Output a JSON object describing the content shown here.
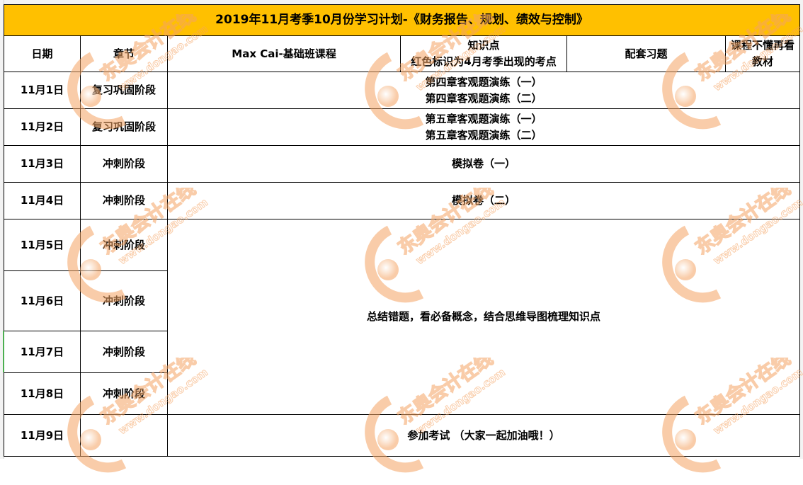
{
  "title": "2019年11月考季10月份学习计划-《财务报告、规划、绩效与控制》",
  "header": {
    "date": "日期",
    "chapter": "章节",
    "course": "Max Cai-基础班课程",
    "knowledge_line1": "知识点",
    "knowledge_line2": "红色标识为4月考季出现的考点",
    "exercises": "配套习题",
    "textbook_line1": "课程不懂再看",
    "textbook_line2": "教材"
  },
  "rows": [
    {
      "date": "11月1日",
      "chapter": "复习巩固阶段",
      "content_line1": "第四章客观题演练（一）",
      "content_line2": "第四章客观题演练（二）"
    },
    {
      "date": "11月2日",
      "chapter": "复习巩固阶段",
      "content_line1": "第五章客观题演练（一）",
      "content_line2": "第五章客观题演练（二）"
    },
    {
      "date": "11月3日",
      "chapter": "冲刺阶段",
      "content_line1": "模拟卷（一）"
    },
    {
      "date": "11月4日",
      "chapter": "冲刺阶段",
      "content_line1": "模拟卷（二）"
    },
    {
      "date": "11月5日",
      "chapter": "冲刺阶段"
    },
    {
      "date": "11月6日",
      "chapter": "冲刺阶段"
    },
    {
      "date": "11月7日",
      "chapter": "冲刺阶段"
    },
    {
      "date": "11月8日",
      "chapter": "冲刺阶段"
    },
    {
      "date": "11月9日",
      "chapter": "",
      "content_line1": "参加考试 （大家一起加油哦！）"
    }
  ],
  "merged_content_5_8": "总结错题，看必备概念，结合思维导图梳理知识点",
  "watermark": {
    "brand": "东奥会计在线",
    "url": "www.dongao.com"
  },
  "colors": {
    "title_bg": "#ffc000",
    "watermark": "#f5a463"
  }
}
